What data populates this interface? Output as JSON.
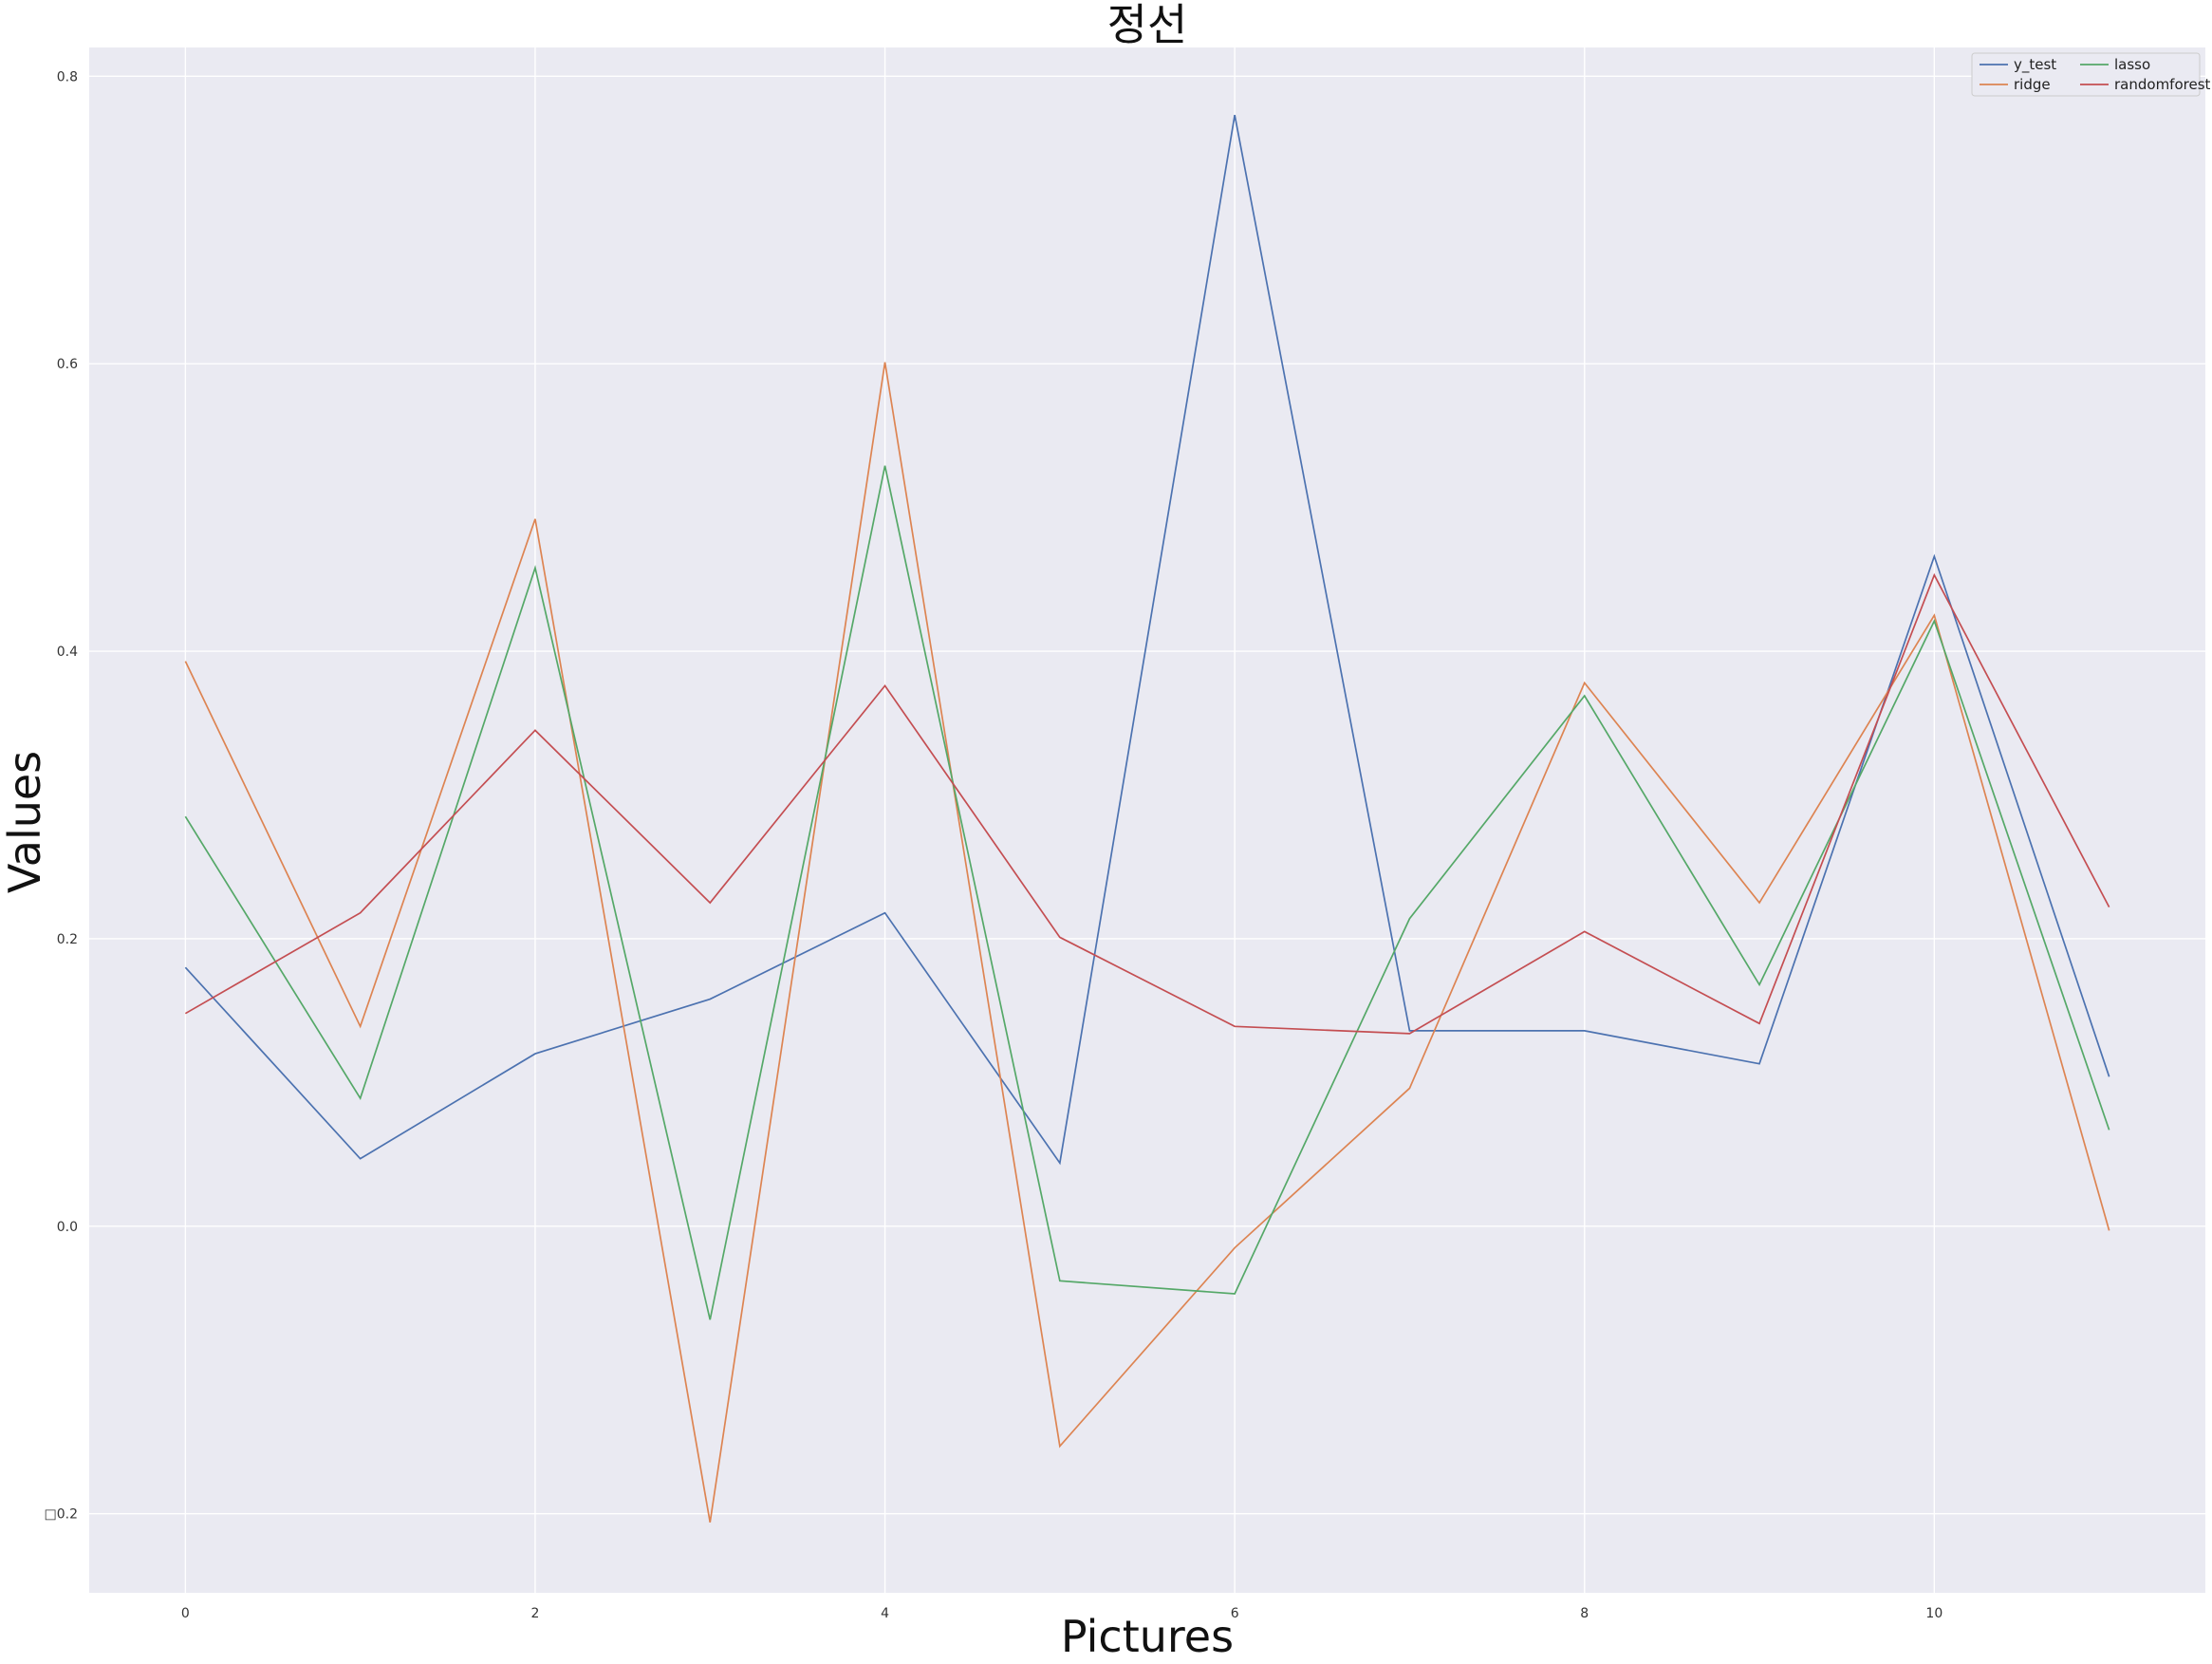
{
  "chart_data": {
    "type": "line",
    "title": "정선",
    "xlabel": "Pictures",
    "ylabel": "Values",
    "x": [
      0,
      1,
      2,
      3,
      4,
      5,
      6,
      7,
      8,
      9,
      10,
      11
    ],
    "xlim": [
      -0.55,
      11.55
    ],
    "ylim": [
      -0.255,
      0.82
    ],
    "xticks": [
      0,
      2,
      4,
      6,
      8,
      10
    ],
    "yticks": [
      -0.2,
      0.0,
      0.2,
      0.4,
      0.6,
      0.8
    ],
    "ytick_labels": [
      "□0.2",
      "0.0",
      "0.2",
      "0.4",
      "0.6",
      "0.8"
    ],
    "grid": true,
    "legend_position": "upper right",
    "legend_columns": 2,
    "series": [
      {
        "name": "y_test",
        "color": "#4c72b0",
        "values": [
          0.18,
          0.047,
          0.12,
          0.158,
          0.218,
          0.044,
          0.773,
          0.136,
          0.136,
          0.113,
          0.466,
          0.104
        ]
      },
      {
        "name": "ridge",
        "color": "#dd8452",
        "values": [
          0.393,
          0.139,
          0.492,
          -0.206,
          0.601,
          -0.153,
          -0.015,
          0.096,
          0.378,
          0.225,
          0.425,
          -0.003
        ]
      },
      {
        "name": "lasso",
        "color": "#55a868",
        "values": [
          0.285,
          0.089,
          0.458,
          -0.065,
          0.529,
          -0.038,
          -0.047,
          0.214,
          0.369,
          0.168,
          0.421,
          0.067
        ]
      },
      {
        "name": "randomforest",
        "color": "#c44e52",
        "values": [
          0.148,
          0.218,
          0.345,
          0.225,
          0.376,
          0.201,
          0.139,
          0.134,
          0.205,
          0.141,
          0.453,
          0.222
        ]
      }
    ]
  }
}
